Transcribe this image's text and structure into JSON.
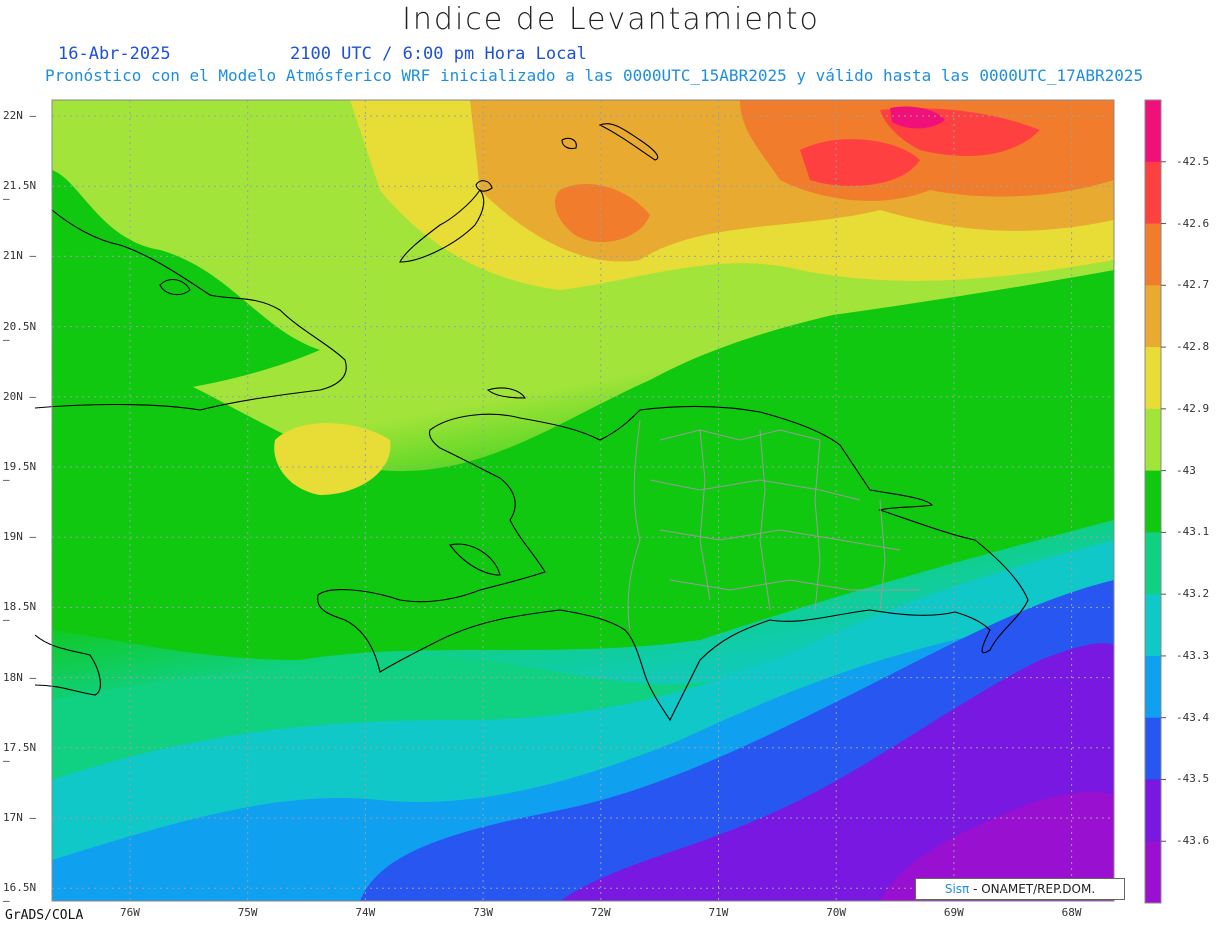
{
  "title": "Indice de Levantamiento",
  "date": "16-Abr-2025",
  "time": "2100 UTC / 6:00 pm Hora Local",
  "subtitle": "Pronóstico con el Modelo Atmósferico WRF inicializado a las 0000UTC_15ABR2025 y válido hasta las  0000UTC_17ABR2025",
  "credit": "GrADS/COLA",
  "logo": {
    "brand": "Sisπ",
    "text": " - ONAMET/REP.DOM."
  },
  "latitudes": [
    "22N",
    "21.5N",
    "21N",
    "20.5N",
    "20N",
    "19.5N",
    "19N",
    "18.5N",
    "18N",
    "17.5N",
    "17N",
    "16.5N"
  ],
  "longitudes": [
    "76W",
    "75W",
    "74W",
    "73W",
    "72W",
    "71W",
    "70W",
    "69W",
    "68W"
  ],
  "colorbar": {
    "labels": [
      "-42.5",
      "-42.6",
      "-42.7",
      "-42.8",
      "-42.9",
      "-43",
      "-43.1",
      "-43.2",
      "-43.3",
      "-43.4",
      "-43.5",
      "-43.6"
    ],
    "colors": [
      "#f0107a",
      "#ff4040",
      "#f07c2c",
      "#e8aa30",
      "#e8dc36",
      "#a2e43a",
      "#10c810",
      "#10d082",
      "#10c8c8",
      "#10a0f0",
      "#2856f0",
      "#7818e0",
      "#9a10d0"
    ]
  }
}
